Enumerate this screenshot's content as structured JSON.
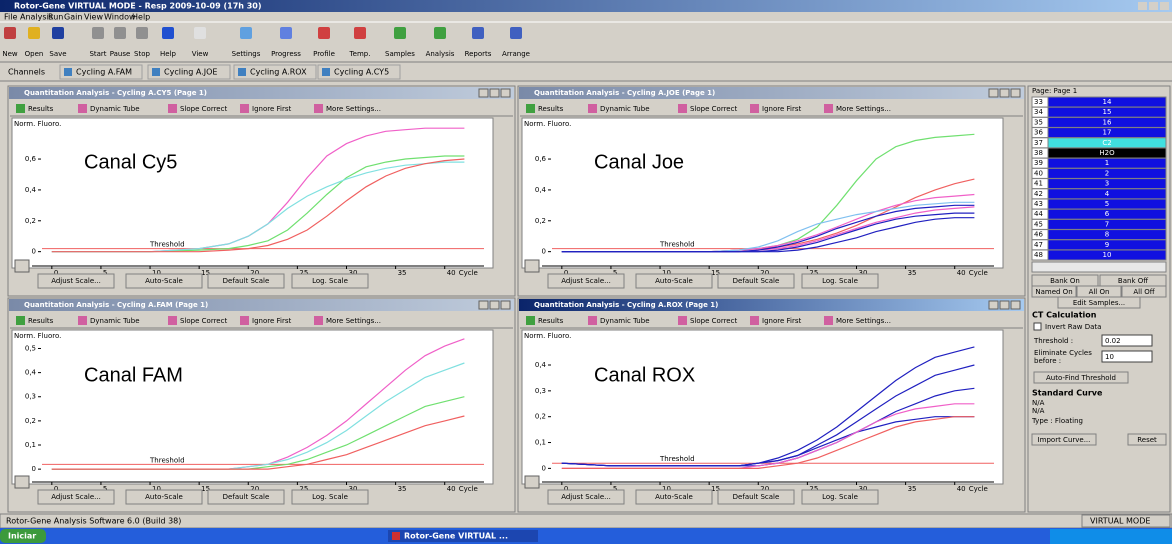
{
  "window": {
    "title": "Rotor-Gene VIRTUAL MODE - Resp 2009-10-09 (17h 30)"
  },
  "menu": [
    "File",
    "Analysis",
    "Run",
    "Gain",
    "View",
    "Window",
    "Help"
  ],
  "toolbar": [
    "New",
    "Open",
    "Save",
    "Start",
    "Pause",
    "Stop",
    "Help",
    "View",
    "Settings",
    "Progress",
    "Profile",
    "Temp.",
    "Samples",
    "Analysis",
    "Reports",
    "Arrange"
  ],
  "channels": {
    "label": "Channels",
    "tabs": [
      "Cycling A.FAM",
      "Cycling A.JOE",
      "Cycling A.ROX",
      "Cycling A.CY5"
    ]
  },
  "panel_tools": [
    "Results",
    "Dynamic Tube",
    "Slope Correct",
    "Ignore First",
    "More Settings..."
  ],
  "panel_buttons": [
    "Adjust Scale...",
    "Auto-Scale",
    "Default Scale",
    "Log. Scale"
  ],
  "chart_data": [
    {
      "type": "line",
      "title": "Quantitation Analysis - Cycling A.CY5 (Page 1)",
      "annotation": "Canal Cy5",
      "ylabel": "Norm. Fluoro.",
      "xlabel": "Cycle",
      "threshold": 0.02,
      "threshold_label": "Threshold",
      "threshold_color": "#f06060",
      "x": [
        0,
        5,
        10,
        15,
        18,
        20,
        22,
        24,
        26,
        28,
        30,
        32,
        34,
        36,
        38,
        40,
        42
      ],
      "xlim": [
        -1,
        44
      ],
      "xticks": [
        0,
        5,
        10,
        15,
        20,
        25,
        30,
        35,
        40
      ],
      "ylim": [
        -0.08,
        0.84
      ],
      "yticks": [
        0,
        {
          "value": 0.2,
          "label": "0,2"
        },
        {
          "value": 0.4,
          "label": "0,4"
        },
        {
          "value": 0.6,
          "label": "0,6"
        }
      ],
      "series": [
        {
          "color": "#f060c8",
          "values": [
            0,
            0,
            0,
            0.02,
            0.05,
            0.1,
            0.18,
            0.32,
            0.48,
            0.62,
            0.7,
            0.75,
            0.78,
            0.79,
            0.8,
            0.8,
            0.8
          ]
        },
        {
          "color": "#70e070",
          "values": [
            0,
            0,
            0,
            0.01,
            0.02,
            0.04,
            0.07,
            0.14,
            0.25,
            0.37,
            0.48,
            0.55,
            0.58,
            0.6,
            0.61,
            0.62,
            0.62
          ]
        },
        {
          "color": "#80e0e0",
          "values": [
            0,
            0,
            0,
            0.02,
            0.05,
            0.1,
            0.18,
            0.28,
            0.36,
            0.42,
            0.47,
            0.51,
            0.54,
            0.56,
            0.57,
            0.58,
            0.58
          ]
        },
        {
          "color": "#f06060",
          "values": [
            0,
            0,
            0,
            0,
            0.01,
            0.02,
            0.04,
            0.08,
            0.14,
            0.23,
            0.33,
            0.42,
            0.49,
            0.54,
            0.57,
            0.59,
            0.6
          ]
        }
      ]
    },
    {
      "type": "line",
      "title": "Quantitation Analysis - Cycling A.JOE (Page 1)",
      "annotation": "Canal Joe",
      "ylabel": "Norm. Fluoro.",
      "xlabel": "Cycle",
      "threshold": 0.02,
      "threshold_label": "Threshold",
      "threshold_color": "#f06060",
      "x": [
        0,
        5,
        10,
        15,
        18,
        20,
        22,
        24,
        26,
        28,
        30,
        32,
        34,
        36,
        38,
        40,
        42
      ],
      "xlim": [
        -1,
        44
      ],
      "xticks": [
        0,
        5,
        10,
        15,
        20,
        25,
        30,
        35,
        40
      ],
      "ylim": [
        -0.08,
        0.84
      ],
      "yticks": [
        0,
        {
          "value": 0.2,
          "label": "0,2"
        },
        {
          "value": 0.4,
          "label": "0,4"
        },
        {
          "value": 0.6,
          "label": "0,6"
        }
      ],
      "series": [
        {
          "color": "#70e070",
          "values": [
            0,
            0,
            0,
            0,
            0.01,
            0.02,
            0.04,
            0.08,
            0.16,
            0.3,
            0.46,
            0.6,
            0.68,
            0.72,
            0.74,
            0.75,
            0.76
          ]
        },
        {
          "color": "#f06060",
          "values": [
            0,
            0,
            0,
            0,
            0.01,
            0.02,
            0.03,
            0.05,
            0.08,
            0.12,
            0.17,
            0.23,
            0.29,
            0.35,
            0.4,
            0.44,
            0.47
          ]
        },
        {
          "color": "#f060c8",
          "values": [
            0,
            0,
            0,
            0,
            0.01,
            0.02,
            0.04,
            0.07,
            0.11,
            0.16,
            0.21,
            0.26,
            0.3,
            0.33,
            0.35,
            0.36,
            0.37
          ]
        },
        {
          "color": "#f060c8",
          "values": [
            0,
            0,
            0,
            0,
            0,
            0.01,
            0.02,
            0.04,
            0.07,
            0.11,
            0.15,
            0.19,
            0.22,
            0.25,
            0.27,
            0.28,
            0.29
          ]
        },
        {
          "color": "#80c0f0",
          "values": [
            0,
            0,
            0,
            0,
            0.01,
            0.03,
            0.07,
            0.13,
            0.18,
            0.21,
            0.24,
            0.26,
            0.28,
            0.3,
            0.31,
            0.32,
            0.32
          ]
        },
        {
          "color": "#2020c0",
          "values": [
            0,
            0,
            0,
            0,
            0,
            0.01,
            0.03,
            0.06,
            0.1,
            0.15,
            0.19,
            0.23,
            0.26,
            0.28,
            0.29,
            0.3,
            0.3
          ]
        },
        {
          "color": "#2020c0",
          "values": [
            0,
            0,
            0,
            0,
            0,
            0,
            0.01,
            0.03,
            0.06,
            0.1,
            0.14,
            0.18,
            0.21,
            0.23,
            0.24,
            0.25,
            0.25
          ]
        },
        {
          "color": "#2020c0",
          "values": [
            0,
            0,
            0,
            0,
            0,
            0,
            0,
            0.01,
            0.03,
            0.06,
            0.09,
            0.13,
            0.16,
            0.19,
            0.21,
            0.22,
            0.22
          ]
        }
      ]
    },
    {
      "type": "line",
      "title": "Quantitation Analysis - Cycling A.FAM (Page 1)",
      "annotation": "Canal FAM",
      "ylabel": "Norm. Fluoro.",
      "xlabel": "Cycle",
      "threshold": 0.02,
      "threshold_label": "Threshold",
      "threshold_color": "#f06060",
      "x": [
        0,
        5,
        10,
        15,
        18,
        20,
        22,
        24,
        26,
        28,
        30,
        32,
        34,
        36,
        38,
        40,
        42
      ],
      "xlim": [
        -1,
        44
      ],
      "xticks": [
        0,
        5,
        10,
        15,
        20,
        25,
        30,
        35,
        40
      ],
      "ylim": [
        -0.045,
        0.56
      ],
      "yticks": [
        0,
        {
          "value": 0.1,
          "label": "0,1"
        },
        {
          "value": 0.2,
          "label": "0,2"
        },
        {
          "value": 0.3,
          "label": "0,3"
        },
        {
          "value": 0.4,
          "label": "0,4"
        },
        {
          "value": 0.5,
          "label": "0,5"
        }
      ],
      "series": [
        {
          "color": "#f060c8",
          "values": [
            0,
            0,
            0,
            0,
            0,
            0.01,
            0.02,
            0.05,
            0.09,
            0.14,
            0.2,
            0.27,
            0.34,
            0.41,
            0.47,
            0.51,
            0.54
          ]
        },
        {
          "color": "#80e0e0",
          "values": [
            0,
            0,
            0,
            0,
            0,
            0.01,
            0.02,
            0.04,
            0.07,
            0.11,
            0.16,
            0.22,
            0.28,
            0.33,
            0.38,
            0.41,
            0.44
          ]
        },
        {
          "color": "#70e070",
          "values": [
            0,
            0,
            0,
            0,
            0,
            0,
            0.01,
            0.02,
            0.04,
            0.07,
            0.1,
            0.14,
            0.18,
            0.22,
            0.26,
            0.28,
            0.3
          ]
        },
        {
          "color": "#f06060",
          "values": [
            0,
            0,
            0,
            0,
            0,
            0,
            0,
            0.01,
            0.02,
            0.04,
            0.06,
            0.09,
            0.12,
            0.15,
            0.18,
            0.2,
            0.22
          ]
        }
      ]
    },
    {
      "type": "line",
      "title": "Quantitation Analysis - Cycling A.ROX (Page 1)",
      "annotation": "Canal ROX",
      "ylabel": "Norm. Fluoro.",
      "xlabel": "Cycle",
      "threshold": 0.02,
      "threshold_label": "Threshold",
      "threshold_color": "#f06060",
      "x": [
        0,
        5,
        10,
        15,
        18,
        20,
        22,
        24,
        26,
        28,
        30,
        32,
        34,
        36,
        38,
        40,
        42
      ],
      "xlim": [
        -1,
        44
      ],
      "xticks": [
        0,
        5,
        10,
        15,
        20,
        25,
        30,
        35,
        40
      ],
      "ylim": [
        -0.045,
        0.52
      ],
      "yticks": [
        0,
        {
          "value": 0.1,
          "label": "0,1"
        },
        {
          "value": 0.2,
          "label": "0,2"
        },
        {
          "value": 0.3,
          "label": "0,3"
        },
        {
          "value": 0.4,
          "label": "0,4"
        }
      ],
      "series": [
        {
          "color": "#2020c0",
          "values": [
            0.02,
            0.01,
            0.01,
            0.01,
            0.01,
            0.02,
            0.04,
            0.07,
            0.11,
            0.16,
            0.22,
            0.28,
            0.34,
            0.39,
            0.43,
            0.45,
            0.47
          ]
        },
        {
          "color": "#2020c0",
          "values": [
            0.02,
            0.01,
            0.01,
            0.01,
            0.01,
            0.02,
            0.03,
            0.05,
            0.09,
            0.13,
            0.18,
            0.23,
            0.28,
            0.32,
            0.36,
            0.38,
            0.4
          ]
        },
        {
          "color": "#2020c0",
          "values": [
            0.02,
            0.01,
            0.01,
            0.01,
            0.01,
            0.01,
            0.02,
            0.04,
            0.07,
            0.1,
            0.14,
            0.18,
            0.22,
            0.25,
            0.28,
            0.3,
            0.31
          ]
        },
        {
          "color": "#2020c0",
          "values": [
            0.02,
            0.01,
            0.01,
            0.01,
            0.01,
            0.02,
            0.03,
            0.05,
            0.08,
            0.11,
            0.14,
            0.16,
            0.18,
            0.19,
            0.2,
            0.2,
            0.2
          ]
        },
        {
          "color": "#f060c8",
          "values": [
            0,
            0,
            0,
            0,
            0,
            0.01,
            0.02,
            0.04,
            0.07,
            0.1,
            0.14,
            0.18,
            0.21,
            0.23,
            0.24,
            0.25,
            0.25
          ]
        },
        {
          "color": "#f06060",
          "values": [
            0,
            0,
            0,
            0,
            0,
            0,
            0.01,
            0.02,
            0.04,
            0.07,
            0.1,
            0.13,
            0.16,
            0.18,
            0.19,
            0.2,
            0.2
          ]
        }
      ]
    }
  ],
  "sidebar": {
    "page": "Page: Page 1",
    "samples": [
      {
        "pos": "33",
        "name": "14",
        "color": "#1010e0"
      },
      {
        "pos": "34",
        "name": "15",
        "color": "#1010e0"
      },
      {
        "pos": "35",
        "name": "16",
        "color": "#1010e0"
      },
      {
        "pos": "36",
        "name": "17",
        "color": "#1010e0"
      },
      {
        "pos": "37",
        "name": "C2",
        "color": "#40e0e0"
      },
      {
        "pos": "38",
        "name": "H2O",
        "color": "#000000"
      },
      {
        "pos": "39",
        "name": "1",
        "color": "#1010e0"
      },
      {
        "pos": "40",
        "name": "2",
        "color": "#1010e0"
      },
      {
        "pos": "41",
        "name": "3",
        "color": "#1010e0"
      },
      {
        "pos": "42",
        "name": "4",
        "color": "#1010e0"
      },
      {
        "pos": "43",
        "name": "5",
        "color": "#1010e0"
      },
      {
        "pos": "44",
        "name": "6",
        "color": "#1010e0"
      },
      {
        "pos": "45",
        "name": "7",
        "color": "#1010e0"
      },
      {
        "pos": "46",
        "name": "8",
        "color": "#1010e0"
      },
      {
        "pos": "47",
        "name": "9",
        "color": "#1010e0"
      },
      {
        "pos": "48",
        "name": "10",
        "color": "#1010e0"
      }
    ],
    "bank_on": "Bank On",
    "bank_off": "Bank Off",
    "named_on": "Named On",
    "all_on": "All On",
    "all_off": "All Off",
    "edit_samples": "Edit Samples...",
    "ct_title": "CT Calculation",
    "invert": "Invert Raw Data",
    "threshold_label": "Threshold :",
    "threshold_value": "0.02",
    "eliminate_1": "Eliminate Cycles",
    "eliminate_2": "before :",
    "eliminate_value": "10",
    "auto_find": "Auto-Find Threshold",
    "std_title": "Standard Curve",
    "na1": "N/A",
    "na2": "N/A",
    "type": "Type : Floating",
    "import": "Import Curve...",
    "reset": "Reset"
  },
  "status": {
    "left": "Rotor-Gene Analysis Software 6.0 (Build 38)",
    "right": "VIRTUAL MODE"
  },
  "taskbar": {
    "start": "Iniciar",
    "task": "Rotor-Gene VIRTUAL ..."
  }
}
